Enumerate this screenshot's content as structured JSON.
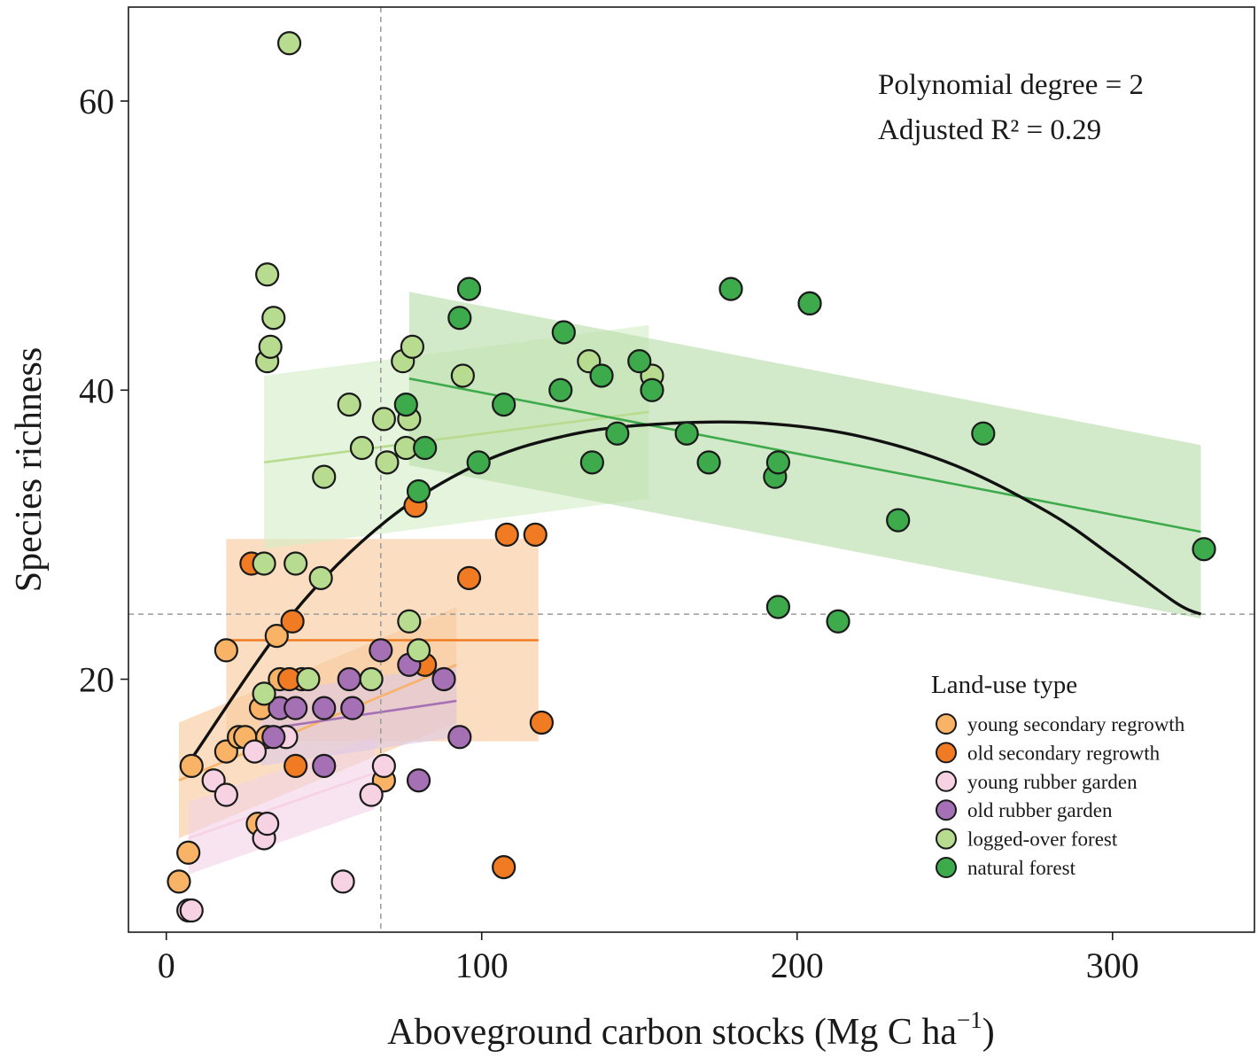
{
  "chart_data": {
    "type": "scatter",
    "xlabel": "Aboveground carbon stocks (Mg C ha",
    "xlabel_sup": "−1",
    "xlabel_close": ")",
    "ylabel": "Species richness",
    "xlim": [
      -12,
      345
    ],
    "ylim": [
      2.5,
      66.5
    ],
    "x_ticks": [
      0,
      100,
      200,
      300
    ],
    "y_ticks": [
      20,
      40,
      60
    ],
    "x_tick_labels": [
      "0",
      "100",
      "200",
      "300"
    ],
    "y_tick_labels": [
      "20",
      "40",
      "60"
    ],
    "grid": false,
    "reference_lines": {
      "x": 68,
      "y": 24.5
    },
    "annotations": {
      "line1": "Polynomial degree = 2",
      "line2": "Adjusted R² = 0.29"
    },
    "legend": {
      "title": "Land-use type",
      "position": "bottom-right"
    },
    "overall_fit": {
      "degree": 2,
      "color": "#111111",
      "curve": [
        [
          8,
          14.5
        ],
        [
          40,
          24.5
        ],
        [
          70,
          31
        ],
        [
          100,
          35
        ],
        [
          130,
          37
        ],
        [
          160,
          37.7
        ],
        [
          190,
          37.7
        ],
        [
          220,
          36.8
        ],
        [
          250,
          34.8
        ],
        [
          280,
          31.5
        ],
        [
          300,
          28.5
        ],
        [
          320,
          25.3
        ],
        [
          328,
          24.5
        ]
      ]
    },
    "series": [
      {
        "name": "young secondary regrowth",
        "color": "#F8B366",
        "fit": {
          "x": [
            4,
            92
          ],
          "y": [
            13,
            21
          ],
          "band_color": "#F8C89A",
          "band_width": 4
        },
        "points": [
          [
            4,
            6
          ],
          [
            7,
            8
          ],
          [
            8,
            14
          ],
          [
            19,
            15
          ],
          [
            19,
            22
          ],
          [
            23,
            16
          ],
          [
            25,
            16
          ],
          [
            29,
            10
          ],
          [
            30,
            18
          ],
          [
            32,
            16
          ],
          [
            35,
            23
          ],
          [
            36,
            20
          ],
          [
            43,
            20
          ],
          [
            69,
            13
          ]
        ]
      },
      {
        "name": "old secondary regrowth",
        "color": "#F07B22",
        "fit": {
          "x": [
            19,
            118
          ],
          "y": [
            22.7,
            22.7
          ],
          "band_color": "#F8C89A",
          "band_width": 7
        },
        "points": [
          [
            27,
            28
          ],
          [
            39,
            20
          ],
          [
            40,
            24
          ],
          [
            41,
            14
          ],
          [
            79,
            32
          ],
          [
            82,
            21
          ],
          [
            96,
            27
          ],
          [
            107,
            7
          ],
          [
            108,
            30
          ],
          [
            117,
            30
          ],
          [
            119,
            17
          ]
        ]
      },
      {
        "name": "young rubber garden",
        "color": "#F6D2E3",
        "fit": {
          "x": [
            7,
            66
          ],
          "y": [
            9,
            13.5
          ],
          "band_color": "#F2D2E6",
          "band_width": 2.5
        },
        "points": [
          [
            7,
            4
          ],
          [
            8,
            4
          ],
          [
            15,
            13
          ],
          [
            19,
            12
          ],
          [
            28,
            15
          ],
          [
            31,
            9
          ],
          [
            32,
            10
          ],
          [
            38,
            16
          ],
          [
            56,
            6
          ],
          [
            65,
            12
          ],
          [
            69,
            14
          ]
        ]
      },
      {
        "name": "old rubber garden",
        "color": "#A570B4",
        "fit": {
          "x": [
            30,
            92
          ],
          "y": [
            16.5,
            18.5
          ],
          "band_color": "#DCC8E6",
          "band_width": 2.5
        },
        "points": [
          [
            34,
            16
          ],
          [
            36,
            18
          ],
          [
            41,
            18
          ],
          [
            50,
            14
          ],
          [
            50,
            18
          ],
          [
            58,
            20
          ],
          [
            59,
            18
          ],
          [
            68,
            22
          ],
          [
            77,
            21
          ],
          [
            80,
            13
          ],
          [
            88,
            20
          ],
          [
            93,
            16
          ],
          [
            204,
            46
          ]
        ]
      },
      {
        "name": "logged-over forest",
        "color": "#B8DC8F",
        "fit": {
          "x": [
            31,
            153
          ],
          "y": [
            35,
            38.5
          ],
          "band_color": "#D4ECC4",
          "band_width": 6
        },
        "points": [
          [
            31,
            19
          ],
          [
            31,
            28
          ],
          [
            32,
            42
          ],
          [
            32,
            48
          ],
          [
            33,
            43
          ],
          [
            34,
            45
          ],
          [
            39,
            64
          ],
          [
            41,
            28
          ],
          [
            45,
            20
          ],
          [
            49,
            27
          ],
          [
            50,
            34
          ],
          [
            58,
            39
          ],
          [
            62,
            36
          ],
          [
            65,
            20
          ],
          [
            69,
            38
          ],
          [
            70,
            35
          ],
          [
            75,
            42
          ],
          [
            76,
            36
          ],
          [
            77,
            38
          ],
          [
            77,
            24
          ],
          [
            78,
            43
          ],
          [
            80,
            22
          ],
          [
            94,
            41
          ],
          [
            134,
            42
          ],
          [
            154,
            41
          ]
        ]
      },
      {
        "name": "natural forest",
        "color": "#3DAA4C",
        "fit": {
          "x": [
            77,
            328
          ],
          "y": [
            40.8,
            30.2
          ],
          "band_color": "#B6DCA6",
          "band_width": 6
        },
        "points": [
          [
            76,
            39
          ],
          [
            80,
            33
          ],
          [
            82,
            36
          ],
          [
            93,
            45
          ],
          [
            96,
            47
          ],
          [
            99,
            35
          ],
          [
            107,
            39
          ],
          [
            125,
            40
          ],
          [
            126,
            44
          ],
          [
            135,
            35
          ],
          [
            138,
            41
          ],
          [
            143,
            37
          ],
          [
            150,
            42
          ],
          [
            154,
            40
          ],
          [
            165,
            37
          ],
          [
            172,
            35
          ],
          [
            179,
            47
          ],
          [
            193,
            34
          ],
          [
            194,
            25
          ],
          [
            194,
            35
          ],
          [
            204,
            46
          ],
          [
            213,
            24
          ],
          [
            232,
            31
          ],
          [
            259,
            37
          ],
          [
            329,
            29
          ]
        ]
      }
    ]
  }
}
